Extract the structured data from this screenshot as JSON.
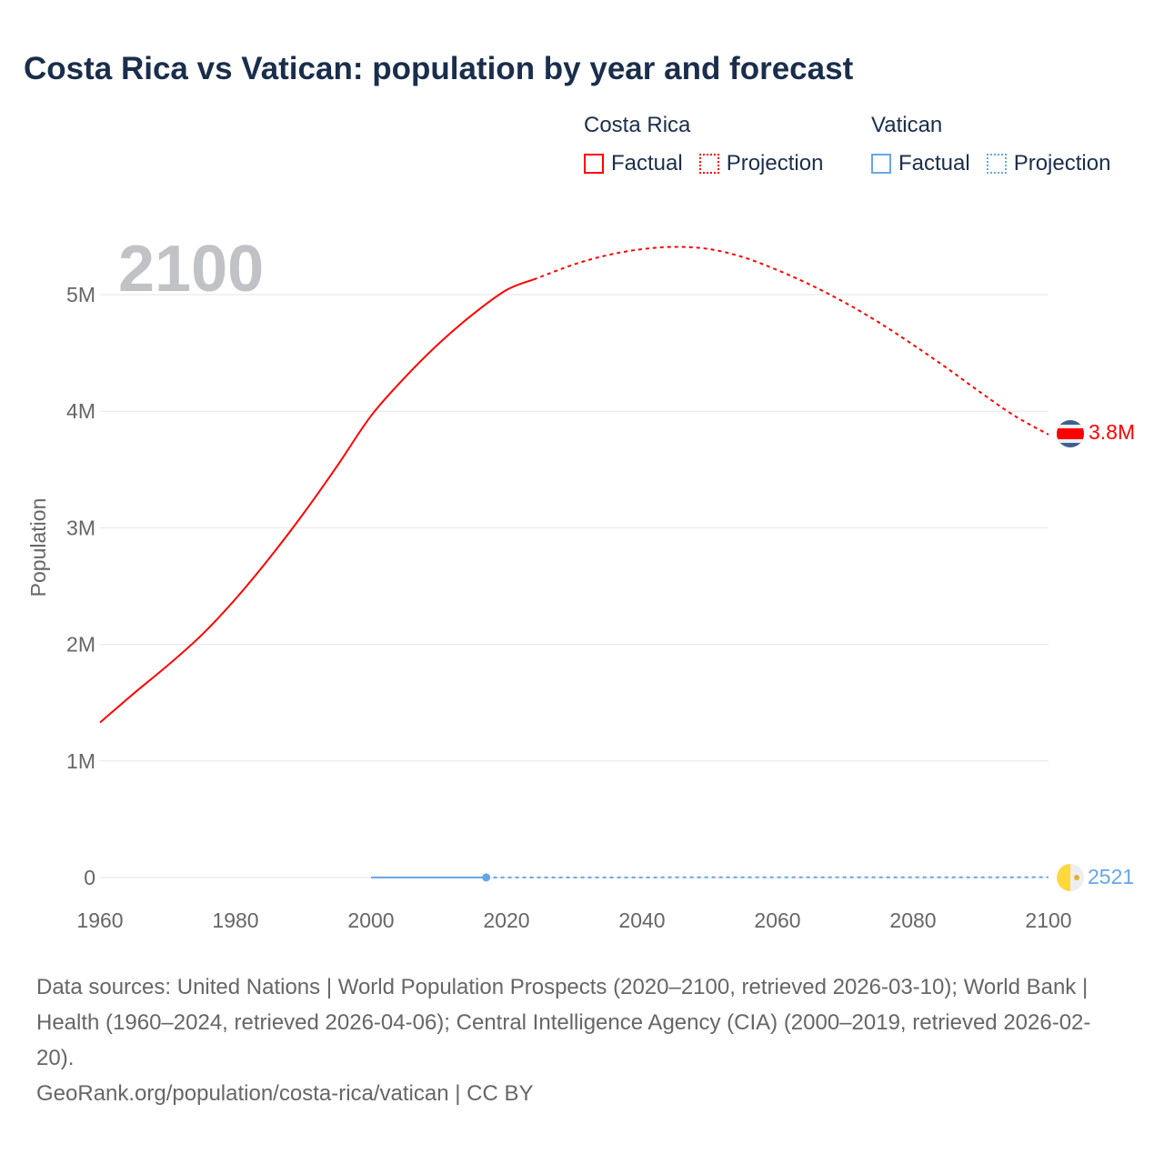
{
  "title": "Costa Rica vs Vatican: population by year and forecast",
  "legend": {
    "groups": [
      {
        "name": "Costa Rica",
        "color": "#ff0000",
        "factual": "Factual",
        "projection": "Projection"
      },
      {
        "name": "Vatican",
        "color": "#66a6e8",
        "factual": "Factual",
        "projection": "Projection"
      }
    ]
  },
  "year_watermark": "2100",
  "end_labels": {
    "costa_rica": "3.8M",
    "vatican": "2521"
  },
  "footer": {
    "sources": "Data sources: United Nations | World Population Prospects (2020–2100, retrieved 2026-03-10); World Bank | Health (1960–2024, retrieved 2026-04-06); Central Intelligence Agency (CIA) (2000–2019, retrieved 2026-02-20).",
    "credit": "GeoRank.org/population/costa-rica/vatican | CC BY"
  },
  "chart_data": {
    "type": "line",
    "title": "Costa Rica vs Vatican: population by year and forecast",
    "xlabel": "",
    "ylabel": "Population",
    "xlim": [
      1960,
      2100
    ],
    "ylim": [
      0,
      5000000
    ],
    "x_ticks": [
      1960,
      1980,
      2000,
      2020,
      2040,
      2060,
      2080,
      2100
    ],
    "x_tick_labels": [
      "1960",
      "1980",
      "2000",
      "2020",
      "2040",
      "2060",
      "2080",
      "2100"
    ],
    "y_ticks": [
      0,
      1000000,
      2000000,
      3000000,
      4000000,
      5000000
    ],
    "y_tick_labels": [
      "0",
      "1M",
      "2M",
      "3M",
      "4M",
      "5M"
    ],
    "grid": true,
    "legend_position": "top-right",
    "series": [
      {
        "name": "Costa Rica Factual",
        "color": "#ff0000",
        "dash": false,
        "x": [
          1960,
          1965,
          1970,
          1975,
          1980,
          1985,
          1990,
          1995,
          2000,
          2005,
          2010,
          2015,
          2020,
          2024
        ],
        "y": [
          1330000,
          1580000,
          1820000,
          2080000,
          2390000,
          2740000,
          3120000,
          3530000,
          3960000,
          4290000,
          4580000,
          4830000,
          5040000,
          5130000
        ]
      },
      {
        "name": "Costa Rica Projection",
        "color": "#ff0000",
        "dash": true,
        "x": [
          2024,
          2030,
          2035,
          2040,
          2045,
          2050,
          2055,
          2060,
          2065,
          2070,
          2075,
          2080,
          2085,
          2090,
          2095,
          2100
        ],
        "y": [
          5130000,
          5260000,
          5340000,
          5390000,
          5410000,
          5390000,
          5320000,
          5210000,
          5080000,
          4930000,
          4760000,
          4570000,
          4370000,
          4160000,
          3960000,
          3800000
        ]
      },
      {
        "name": "Vatican Factual",
        "color": "#66a6e8",
        "dash": false,
        "x": [
          2000,
          2005,
          2010,
          2017
        ],
        "y": [
          880,
          920,
          830,
          1000
        ]
      },
      {
        "name": "Vatican Projection",
        "color": "#66a6e8",
        "dash": true,
        "x": [
          2017,
          2100
        ],
        "y": [
          1000,
          2521
        ]
      }
    ]
  }
}
